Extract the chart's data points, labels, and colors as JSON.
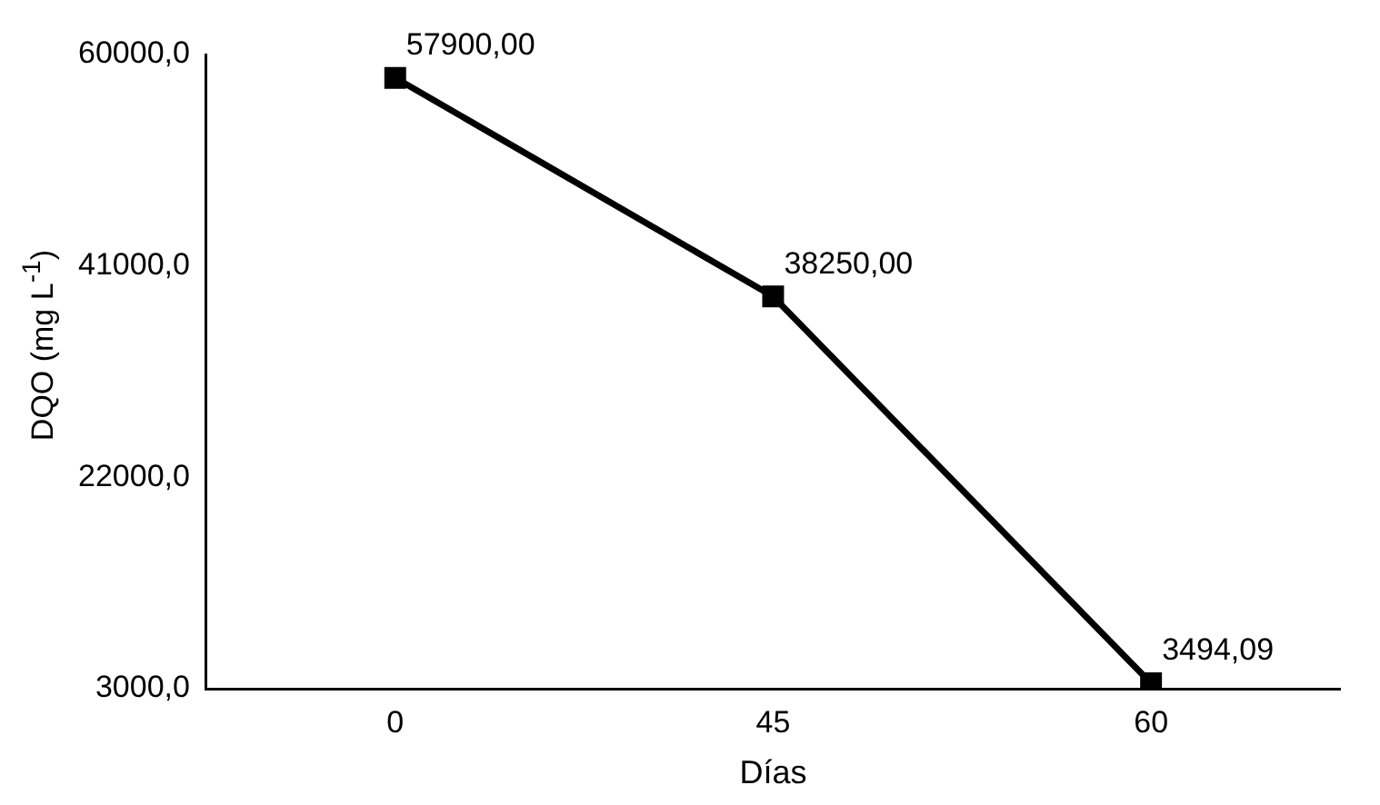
{
  "chart_data": {
    "type": "line",
    "xlabel": "Días",
    "ylabel": "DQO (mg L$^{-1}$)",
    "categories": [
      "0",
      "45",
      "60"
    ],
    "values": [
      57900,
      38250,
      3494.09
    ],
    "value_labels": [
      "57900,00",
      "38250,00",
      "3494,09"
    ],
    "color": "#000000",
    "marker": "square",
    "line_style": "solid",
    "ylim": [
      3000,
      60000
    ],
    "yticks": [
      {
        "value": 3000,
        "label": "3000,0"
      },
      {
        "value": 22000,
        "label": "22000,0"
      },
      {
        "value": 41000,
        "label": "41000,0"
      },
      {
        "value": 60000,
        "label": "60000,0"
      }
    ],
    "grid": false,
    "legend": false
  }
}
